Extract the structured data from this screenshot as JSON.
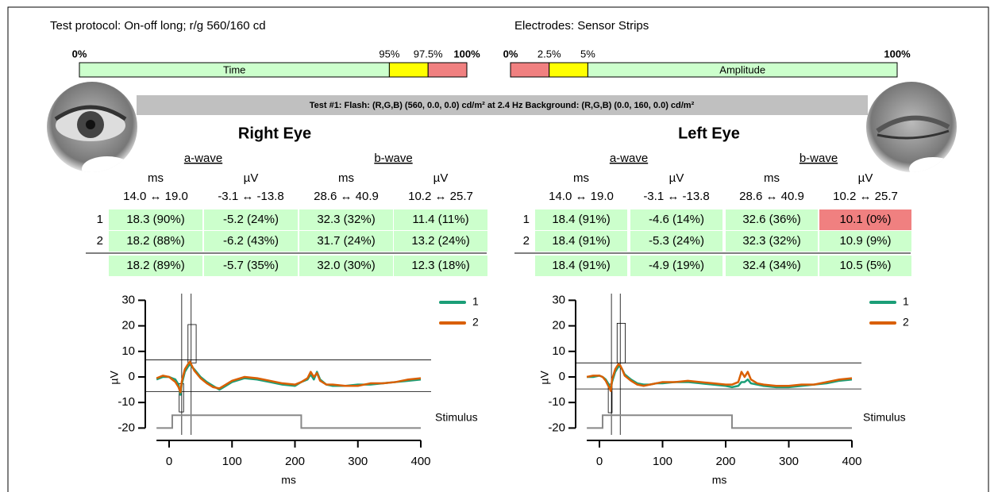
{
  "header": {
    "protocol": "Test protocol: On-off long; r/g 560/160 cd",
    "electrodes": "Electrodes: Sensor Strips"
  },
  "bars": [
    {
      "label": "Time",
      "ticks": [
        {
          "value": 0,
          "label": "0%"
        },
        {
          "value": 95,
          "label": "95%"
        },
        {
          "value": 97.5,
          "label": "97.5%"
        },
        {
          "value": 100,
          "label": "100%"
        }
      ],
      "colors": [
        "#ccffcc",
        "#ffff00",
        "#f08080"
      ]
    },
    {
      "label": "Amplitude",
      "ticks": [
        {
          "value": 0,
          "label": "0%"
        },
        {
          "value": 2.5,
          "label": "2.5%"
        },
        {
          "value": 5,
          "label": "5%"
        },
        {
          "value": 100,
          "label": "100%"
        }
      ],
      "colors": [
        "#f08080",
        "#ffff00",
        "#ccffcc"
      ]
    }
  ],
  "test_line": "Test #1:   Flash: (R,G,B) (560, 0.0, 0.0) cd/m² at 2.4 Hz   Background: (R,G,B) (0.0, 160, 0.0) cd/m²",
  "eyes": [
    {
      "title": "Right Eye",
      "groups": [
        "a-wave",
        "b-wave"
      ],
      "units": [
        "ms",
        "µV",
        "ms",
        "µV"
      ],
      "ranges": [
        "14.0 ↔ 19.0",
        "-3.1 ↔ -13.8",
        "28.6 ↔ 40.9",
        "10.2 ↔ 25.7"
      ],
      "rows": [
        {
          "label": "1",
          "cells": [
            "18.3 (90%)",
            "-5.2 (24%)",
            "32.3 (32%)",
            "11.4 (11%)"
          ],
          "colors": [
            "#ccffcc",
            "#ccffcc",
            "#ccffcc",
            "#ccffcc"
          ]
        },
        {
          "label": "2",
          "cells": [
            "18.2 (88%)",
            "-6.2 (43%)",
            "31.7 (24%)",
            "13.2 (24%)"
          ],
          "colors": [
            "#ccffcc",
            "#ccffcc",
            "#ccffcc",
            "#ccffcc"
          ]
        }
      ],
      "mean": {
        "cells": [
          "18.2 (89%)",
          "-5.7 (35%)",
          "32.0 (30%)",
          "12.3 (18%)"
        ],
        "colors": [
          "#ccffcc",
          "#ccffcc",
          "#ccffcc",
          "#ccffcc"
        ]
      },
      "chart": {
        "type": "line",
        "xlabel": "ms",
        "ylabel": "µV",
        "xlim": [
          -20,
          400
        ],
        "ylim": [
          -20,
          30
        ],
        "xticks": [
          0,
          100,
          200,
          300,
          400
        ],
        "yticks": [
          -20,
          -10,
          0,
          10,
          20,
          30
        ],
        "x": [
          -20,
          -10,
          0,
          5,
          10,
          15,
          18,
          20,
          25,
          30,
          33,
          36,
          40,
          50,
          60,
          70,
          80,
          90,
          100,
          120,
          140,
          160,
          180,
          200,
          210,
          220,
          225,
          230,
          235,
          240,
          250,
          260,
          280,
          300,
          320,
          340,
          360,
          380,
          400
        ],
        "series": [
          {
            "name": "1",
            "color": "#1b9e77",
            "values": [
              -1,
              0,
              0,
              -0.5,
              -1,
              -3,
              -7,
              -3,
              2,
              4,
              5,
              4,
              3,
              0,
              -2,
              -3.5,
              -5,
              -3.5,
              -2,
              -0.5,
              -1,
              -2,
              -3,
              -3.5,
              -2,
              -1,
              1,
              -1,
              2,
              -1,
              -3,
              -3.5,
              -3.5,
              -3,
              -3,
              -2.5,
              -2,
              -1.5,
              -1
            ]
          },
          {
            "name": "2",
            "color": "#d95f02",
            "values": [
              -0.5,
              0.5,
              0,
              -1,
              -2,
              -4,
              -6,
              -2,
              3,
              5,
              6,
              4.5,
              2.5,
              -0.5,
              -2.5,
              -4,
              -4.5,
              -3,
              -1.5,
              0,
              -0.5,
              -1.5,
              -2.5,
              -3,
              -2,
              -0.5,
              2,
              0,
              1.5,
              -1.5,
              -3,
              -3,
              -3.5,
              -3.5,
              -2.5,
              -2.5,
              -2,
              -1,
              -0.5
            ]
          }
        ],
        "stimulus": {
          "name": "Stimulus",
          "color": "#888888",
          "x": [
            -20,
            5,
            5,
            210,
            210,
            400
          ],
          "values": [
            -20,
            -20,
            -15,
            -15,
            -20,
            -20
          ]
        },
        "hlines": [
          6.7,
          -5.7
        ],
        "vlines": [
          20,
          35
        ],
        "boxes": [
          {
            "x0": 16,
            "x1": 23,
            "y0": -13.7,
            "y1": -2.6
          },
          {
            "x0": 30,
            "x1": 43,
            "y0": 5.5,
            "y1": 20.5
          }
        ]
      }
    },
    {
      "title": "Left Eye",
      "groups": [
        "a-wave",
        "b-wave"
      ],
      "units": [
        "ms",
        "µV",
        "ms",
        "µV"
      ],
      "ranges": [
        "14.0 ↔ 19.0",
        "-3.1 ↔ -13.8",
        "28.6 ↔ 40.9",
        "10.2 ↔ 25.7"
      ],
      "rows": [
        {
          "label": "1",
          "cells": [
            "18.4 (91%)",
            "-4.6 (14%)",
            "32.6 (36%)",
            "10.1 (0%)"
          ],
          "colors": [
            "#ccffcc",
            "#ccffcc",
            "#ccffcc",
            "#f08080"
          ]
        },
        {
          "label": "2",
          "cells": [
            "18.4 (91%)",
            "-5.3 (24%)",
            "32.3 (32%)",
            "10.9 (9%)"
          ],
          "colors": [
            "#ccffcc",
            "#ccffcc",
            "#ccffcc",
            "#ccffcc"
          ]
        }
      ],
      "mean": {
        "cells": [
          "18.4 (91%)",
          "-4.9 (19%)",
          "32.4 (34%)",
          "10.5 (5%)"
        ],
        "colors": [
          "#ccffcc",
          "#ccffcc",
          "#ccffcc",
          "#ccffcc"
        ]
      },
      "chart": {
        "type": "line",
        "xlabel": "ms",
        "ylabel": "µV",
        "xlim": [
          -20,
          400
        ],
        "ylim": [
          -20,
          30
        ],
        "xticks": [
          0,
          100,
          200,
          300,
          400
        ],
        "yticks": [
          -20,
          -10,
          0,
          10,
          20,
          30
        ],
        "x": [
          -20,
          -10,
          0,
          5,
          10,
          15,
          18,
          20,
          25,
          30,
          33,
          36,
          40,
          50,
          60,
          70,
          80,
          90,
          100,
          120,
          140,
          160,
          180,
          200,
          210,
          220,
          225,
          230,
          235,
          240,
          250,
          260,
          280,
          300,
          320,
          340,
          360,
          380,
          400
        ],
        "series": [
          {
            "name": "1",
            "color": "#1b9e77",
            "values": [
              0,
              0,
              0.5,
              0,
              -1,
              -3,
              -5,
              -2,
              2,
              4,
              4,
              3,
              1,
              -1,
              -2.5,
              -3,
              -3,
              -2.5,
              -2.5,
              -2,
              -2,
              -2.5,
              -3,
              -3.5,
              -4,
              -3.5,
              -2,
              -2,
              -1,
              -2.5,
              -3,
              -3.5,
              -4,
              -4,
              -3.5,
              -3,
              -2.5,
              -1.5,
              -1
            ]
          },
          {
            "name": "2",
            "color": "#d95f02",
            "values": [
              0,
              0.5,
              0.5,
              0,
              -1.5,
              -4,
              -5.5,
              -1,
              3,
              5,
              4.5,
              3,
              0.5,
              -1.5,
              -3,
              -3.5,
              -3,
              -2.5,
              -2,
              -2,
              -1.5,
              -2,
              -2.5,
              -3,
              -3,
              -2,
              2,
              0,
              2,
              -1,
              -2.5,
              -3,
              -3.5,
              -3.5,
              -3,
              -3,
              -2,
              -1,
              -0.5
            ]
          }
        ],
        "stimulus": {
          "name": "Stimulus",
          "color": "#888888",
          "x": [
            -20,
            5,
            5,
            210,
            210,
            400
          ],
          "values": [
            -20,
            -20,
            -15,
            -15,
            -20,
            -20
          ]
        },
        "hlines": [
          5.5,
          -4.7
        ],
        "vlines": [
          19,
          33
        ],
        "boxes": [
          {
            "x0": 14,
            "x1": 20,
            "y0": -14,
            "y1": -2.8
          },
          {
            "x0": 28,
            "x1": 41,
            "y0": 5.5,
            "y1": 21
          }
        ]
      }
    }
  ]
}
